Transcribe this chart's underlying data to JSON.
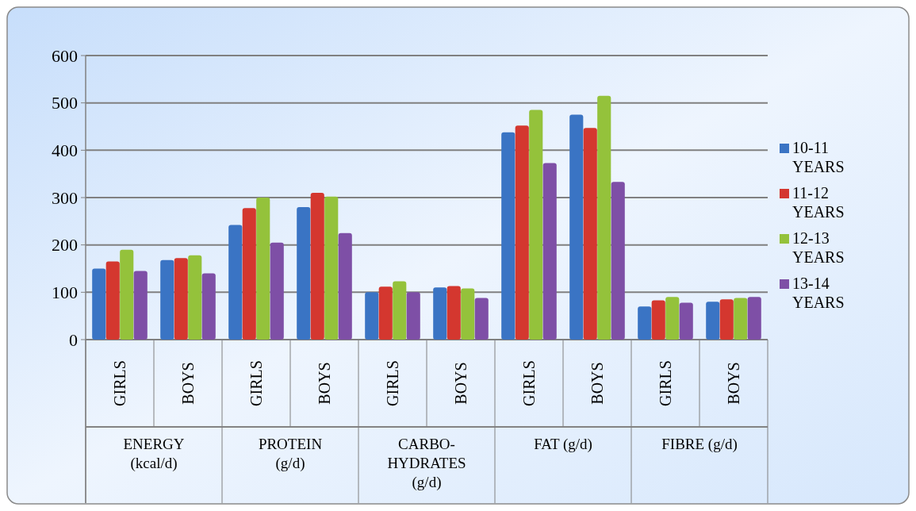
{
  "chart_data": {
    "type": "bar",
    "categories": [
      "GIRLS",
      "BOYS",
      "GIRLS",
      "BOYS",
      "GIRLS",
      "BOYS",
      "GIRLS",
      "BOYS",
      "GIRLS",
      "BOYS"
    ],
    "annotations": [
      "ENERGY (kcal/d)",
      "PROTEIN (g/d)",
      "CARBO-HYDRATES (g/d)",
      "FAT (g/d)",
      "FIBRE (g/d)"
    ],
    "series": [
      {
        "name": "10-11 YEARS",
        "color": "#3a74c4",
        "values": [
          150,
          168,
          242,
          280,
          100,
          110,
          438,
          475,
          70,
          80
        ]
      },
      {
        "name": "11-12 YEARS",
        "color": "#d4372f",
        "values": [
          165,
          172,
          278,
          310,
          112,
          113,
          452,
          447,
          83,
          85
        ]
      },
      {
        "name": "12-13 YEARS",
        "color": "#94c23b",
        "values": [
          190,
          178,
          300,
          302,
          123,
          108,
          485,
          515,
          90,
          88
        ]
      },
      {
        "name": "13-14 YEARS",
        "color": "#7e4fa6",
        "values": [
          145,
          140,
          205,
          225,
          100,
          88,
          373,
          333,
          78,
          90
        ]
      }
    ],
    "ylim": [
      0,
      600
    ],
    "yticks": [
      0,
      100,
      200,
      300,
      400,
      500,
      600
    ],
    "grid": "y",
    "legend": "right"
  }
}
